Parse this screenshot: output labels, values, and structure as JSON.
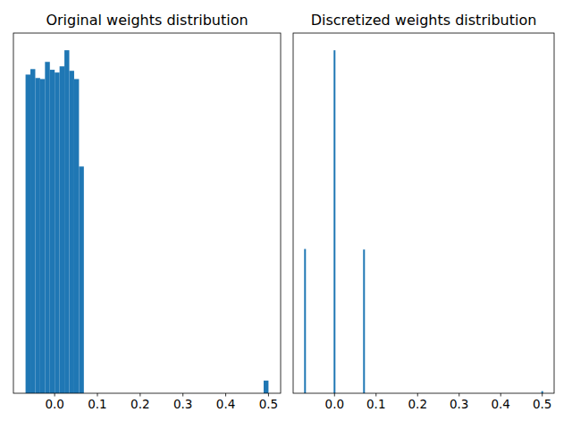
{
  "chart_data": [
    {
      "type": "histogram",
      "title": "Original weights distribution",
      "bins": [
        -0.068,
        -0.05664,
        -0.04528,
        -0.03392,
        -0.02256,
        -0.0112,
        0.00016,
        0.01152,
        0.02288,
        0.03424,
        0.0456,
        0.05696,
        0.06832,
        0.07968,
        0.09104,
        0.1024,
        0.11376,
        0.12512,
        0.13648,
        0.14784,
        0.1592,
        0.17056,
        0.18192,
        0.19328,
        0.20464,
        0.216,
        0.22736,
        0.23872,
        0.25008,
        0.26144,
        0.2728,
        0.28416,
        0.29552,
        0.30688,
        0.31824,
        0.3296,
        0.34096,
        0.35232,
        0.36368,
        0.37504,
        0.3864,
        0.39776,
        0.40912,
        0.42048,
        0.43184,
        0.4432,
        0.45456,
        0.46592,
        0.47728,
        0.48864,
        0.5
      ],
      "values": [
        929,
        945,
        919,
        916,
        966,
        943,
        935,
        953,
        1000,
        940,
        916,
        661,
        0,
        0,
        0,
        0,
        0,
        0,
        0,
        0,
        0,
        0,
        0,
        0,
        0,
        0,
        0,
        0,
        0,
        0,
        0,
        0,
        0,
        0,
        0,
        0,
        0,
        0,
        0,
        0,
        0,
        0,
        0,
        0,
        0,
        0,
        0,
        0,
        0,
        37
      ],
      "color": "#1f77b4",
      "xlim": [
        -0.0964,
        0.5284
      ],
      "xticks": [
        {
          "value": 0,
          "label": "0.0"
        },
        {
          "value": 0.1,
          "label": "0.1"
        },
        {
          "value": 0.2,
          "label": "0.2"
        },
        {
          "value": 0.3,
          "label": "0.3"
        },
        {
          "value": 0.4,
          "label": "0.4"
        },
        {
          "value": 0.5,
          "label": "0.5"
        }
      ],
      "ylim": [
        0,
        1050
      ],
      "grid": false,
      "tick_labels": "x"
    },
    {
      "type": "bar",
      "title": "Discretized weights distribution",
      "x": [
        -0.071,
        0.0,
        0.071,
        0.5
      ],
      "values": [
        2520,
        5990,
        2510,
        37
      ],
      "color": "#1f77b4",
      "xlim": [
        -0.0996,
        0.5286
      ],
      "xticks": [
        {
          "value": 0,
          "label": "0.0"
        },
        {
          "value": 0.1,
          "label": "0.1"
        },
        {
          "value": 0.2,
          "label": "0.2"
        },
        {
          "value": 0.3,
          "label": "0.3"
        },
        {
          "value": 0.4,
          "label": "0.4"
        },
        {
          "value": 0.5,
          "label": "0.5"
        }
      ],
      "ylim": [
        0,
        6290
      ],
      "grid": false,
      "tick_labels": "x"
    }
  ]
}
